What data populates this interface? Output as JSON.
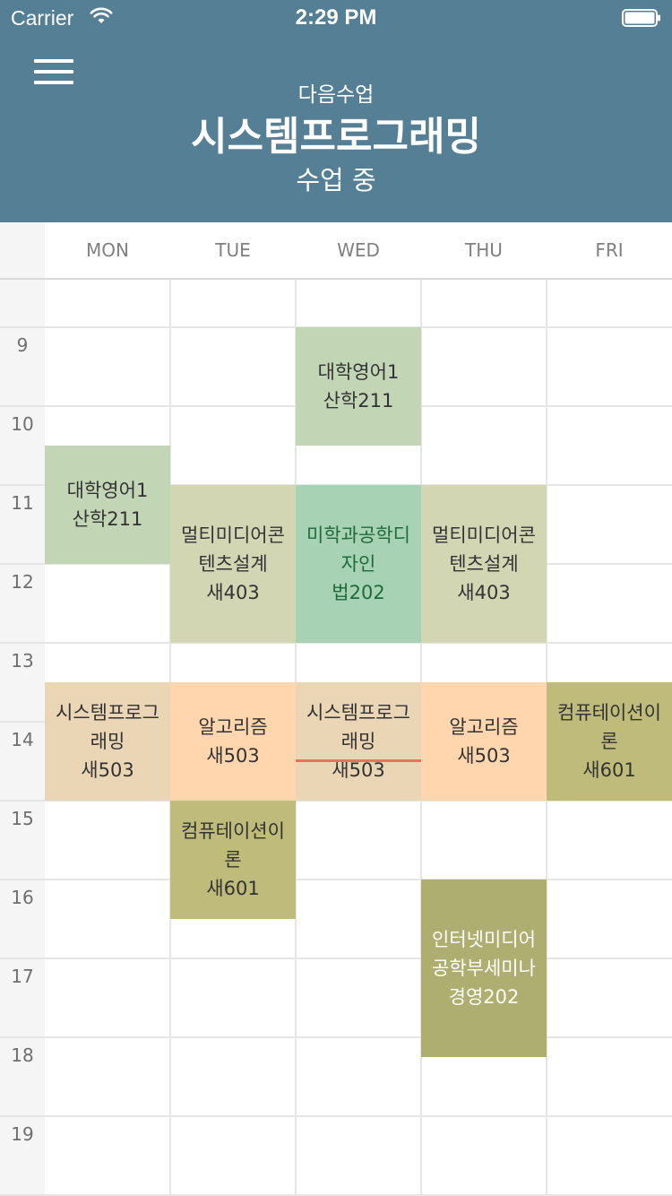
{
  "status_bar": {
    "carrier": "Carrier",
    "time": "2:29 PM"
  },
  "header": {
    "menu_icon": "hamburger-menu-icon",
    "next_label": "다음수업",
    "course_title": "시스템프로그래밍",
    "course_status": "수업 중",
    "background": "#547f95"
  },
  "days": [
    "MON",
    "TUE",
    "WED",
    "THU",
    "FRI"
  ],
  "hours": [
    "9",
    "10",
    "11",
    "12",
    "13",
    "14",
    "15",
    "16",
    "17",
    "18",
    "19"
  ],
  "classes": [
    {
      "day": "MON",
      "start": "10:30",
      "end": "12:00",
      "name": "대학영어1",
      "room": "산학211",
      "color": "#c2d5b5",
      "text_color": "#333333"
    },
    {
      "day": "WED",
      "start": "9:00",
      "end": "10:30",
      "name": "대학영어1",
      "room": "산학211",
      "color": "#c2d5b5",
      "text_color": "#333333"
    },
    {
      "day": "TUE",
      "start": "11:00",
      "end": "13:00",
      "name": "멀티미디어콘텐츠설계",
      "room": "새403",
      "color": "#d3d6b3",
      "text_color": "#333333"
    },
    {
      "day": "WED",
      "start": "11:00",
      "end": "13:00",
      "name": "미학과공학디자인",
      "room": "법202",
      "color": "#a8d2b4",
      "text_color": "#1f6b3c"
    },
    {
      "day": "THU",
      "start": "11:00",
      "end": "13:00",
      "name": "멀티미디어콘텐츠설계",
      "room": "새403",
      "color": "#d3d6b3",
      "text_color": "#333333"
    },
    {
      "day": "MON",
      "start": "13:30",
      "end": "15:00",
      "name": "시스템프로그래밍",
      "room": "새503",
      "color": "#ead6b5",
      "text_color": "#333333"
    },
    {
      "day": "TUE",
      "start": "13:30",
      "end": "15:00",
      "name": "알고리즘",
      "room": "새503",
      "color": "#ffd6ae",
      "text_color": "#333333"
    },
    {
      "day": "WED",
      "start": "13:30",
      "end": "15:00",
      "name": "시스템프로그래밍",
      "room": "새503",
      "color": "#ead6b5",
      "text_color": "#333333"
    },
    {
      "day": "THU",
      "start": "13:30",
      "end": "15:00",
      "name": "알고리즘",
      "room": "새503",
      "color": "#ffd6ae",
      "text_color": "#333333"
    },
    {
      "day": "FRI",
      "start": "13:30",
      "end": "15:00",
      "name": "컴퓨테이션이론",
      "room": "새601",
      "color": "#bfbb7a",
      "text_color": "#333333"
    },
    {
      "day": "TUE",
      "start": "15:00",
      "end": "16:30",
      "name": "컴퓨테이션이론",
      "room": "새601",
      "color": "#bfbb7a",
      "text_color": "#333333"
    },
    {
      "day": "THU",
      "start": "16:00",
      "end": "18:15",
      "name": "인터넷미디어공학부세미나",
      "room": "경영202",
      "color": "#aeae71",
      "text_color": "#ffffff"
    }
  ],
  "current_time_indicator": {
    "day": "WED",
    "time": "14:29",
    "color": "#e8735e"
  }
}
